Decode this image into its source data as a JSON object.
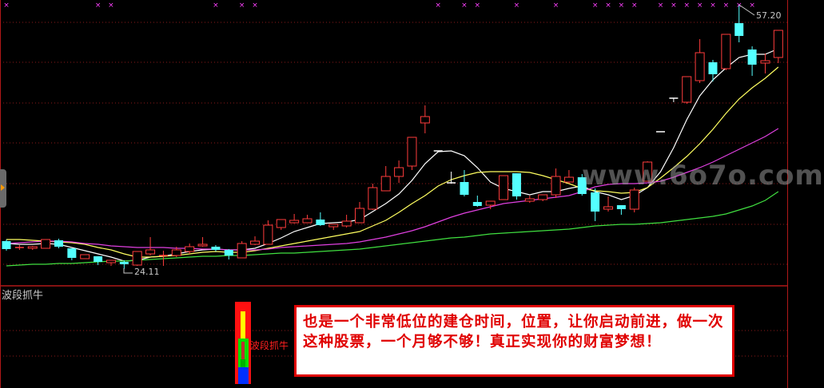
{
  "chart_data": {
    "type": "candlestick",
    "ylim": [
      22.0,
      57.8
    ],
    "grid": true,
    "candles": [
      [
        27.6,
        27.8,
        26.4,
        26.6
      ],
      [
        26.8,
        27.1,
        26.5,
        26.8
      ],
      [
        26.7,
        27.0,
        26.5,
        26.9
      ],
      [
        26.7,
        27.8,
        26.7,
        27.8
      ],
      [
        27.7,
        27.9,
        26.7,
        26.9
      ],
      [
        26.7,
        26.7,
        25.2,
        25.5
      ],
      [
        25.4,
        25.9,
        25.4,
        25.9
      ],
      [
        25.7,
        25.7,
        24.6,
        25.0
      ],
      [
        24.9,
        25.2,
        24.5,
        25.2
      ],
      [
        25.0,
        25.2,
        24.11,
        24.7
      ],
      [
        24.6,
        26.3,
        24.5,
        26.3
      ],
      [
        26.0,
        28.1,
        25.8,
        26.5
      ],
      [
        25.8,
        26.4,
        24.5,
        25.8
      ],
      [
        25.8,
        26.9,
        25.6,
        26.5
      ],
      [
        26.3,
        27.3,
        26.0,
        26.9
      ],
      [
        27.0,
        28.1,
        26.9,
        27.2
      ],
      [
        26.9,
        27.1,
        26.3,
        26.5
      ],
      [
        26.5,
        26.6,
        25.3,
        25.8
      ],
      [
        25.5,
        27.6,
        25.5,
        27.3
      ],
      [
        27.2,
        28.2,
        27.1,
        27.6
      ],
      [
        27.2,
        30.2,
        27.2,
        29.6
      ],
      [
        29.3,
        30.3,
        29.0,
        30.3
      ],
      [
        29.9,
        31.0,
        29.8,
        30.2
      ],
      [
        29.9,
        30.9,
        29.9,
        30.4
      ],
      [
        30.3,
        31.2,
        29.5,
        29.6
      ],
      [
        29.4,
        29.7,
        29.0,
        29.7
      ],
      [
        29.5,
        30.9,
        29.3,
        30.1
      ],
      [
        29.9,
        32.5,
        29.9,
        31.7
      ],
      [
        31.6,
        34.8,
        31.5,
        34.3
      ],
      [
        33.9,
        37.0,
        33.9,
        35.7
      ],
      [
        35.7,
        37.7,
        34.9,
        36.8
      ],
      [
        37.0,
        40.6,
        36.5,
        40.6
      ],
      [
        42.4,
        44.6,
        41.1,
        43.2
      ],
      [
        38.9,
        38.9,
        38.9,
        38.9
      ],
      [
        34.9,
        36.3,
        34.8,
        34.9
      ],
      [
        35.0,
        36.5,
        33.2,
        33.4
      ],
      [
        32.5,
        33.3,
        31.9,
        32.0
      ],
      [
        32.1,
        32.6,
        31.6,
        32.6
      ],
      [
        32.8,
        35.8,
        32.8,
        35.8
      ],
      [
        36.1,
        36.1,
        32.8,
        33.2
      ],
      [
        32.6,
        33.3,
        32.4,
        32.9
      ],
      [
        32.8,
        33.4,
        32.6,
        33.4
      ],
      [
        33.4,
        36.7,
        33.0,
        35.7
      ],
      [
        35.0,
        36.5,
        34.8,
        35.6
      ],
      [
        35.6,
        36.0,
        33.3,
        33.5
      ],
      [
        33.7,
        34.2,
        30.1,
        31.3
      ],
      [
        31.6,
        33.2,
        31.3,
        31.9
      ],
      [
        32.1,
        32.1,
        30.9,
        31.6
      ],
      [
        31.6,
        34.3,
        31.2,
        34.0
      ],
      [
        35.1,
        37.6,
        35.1,
        37.5
      ],
      [
        41.3,
        41.3,
        41.3,
        41.3
      ],
      [
        45.5,
        45.5,
        45.0,
        45.5
      ],
      [
        45.0,
        48.2,
        44.8,
        48.2
      ],
      [
        47.7,
        52.9,
        47.4,
        51.2
      ],
      [
        50.0,
        50.3,
        47.6,
        48.5
      ],
      [
        49.2,
        53.5,
        49.0,
        53.5
      ],
      [
        54.9,
        57.2,
        52.5,
        53.3
      ],
      [
        51.6,
        52.0,
        48.3,
        49.7
      ],
      [
        49.9,
        51.1,
        48.6,
        50.2
      ],
      [
        50.6,
        54.0,
        49.9,
        54.0
      ]
    ],
    "white_doji": [
      33,
      34,
      50,
      51
    ],
    "signal_marks": [
      0,
      7,
      8,
      16,
      18,
      19,
      33,
      35,
      36,
      39,
      42,
      45,
      46,
      47,
      48,
      50,
      51,
      52,
      53,
      54,
      55,
      56,
      57
    ],
    "ma_lines": [
      {
        "color": "#ffffff",
        "values": [
          27.3,
          27.2,
          27.2,
          27.3,
          27.2,
          26.8,
          26.4,
          26.0,
          25.6,
          25.1,
          25.2,
          25.6,
          25.7,
          26.0,
          26.3,
          26.5,
          26.6,
          26.5,
          26.5,
          26.7,
          27.3,
          28.0,
          28.8,
          29.3,
          29.8,
          29.9,
          30.0,
          30.3,
          31.3,
          32.3,
          33.5,
          35.2,
          37.3,
          38.8,
          38.9,
          38.3,
          36.8,
          35.0,
          34.2,
          33.8,
          33.4,
          33.8,
          33.8,
          34.2,
          34.5,
          33.8,
          33.4,
          32.8,
          33.3,
          34.3,
          36.3,
          39.3,
          42.8,
          45.8,
          47.8,
          49.3,
          50.6,
          51.0,
          51.0,
          51.7
        ]
      },
      {
        "color": "#ffff60",
        "values": [
          27.8,
          27.8,
          27.7,
          27.6,
          27.5,
          27.4,
          27.2,
          26.8,
          26.5,
          26.0,
          25.6,
          25.6,
          25.7,
          25.8,
          26.0,
          26.2,
          26.3,
          26.2,
          26.2,
          26.4,
          26.7,
          27.0,
          27.3,
          27.6,
          27.9,
          28.2,
          28.5,
          28.8,
          29.5,
          30.2,
          31.2,
          32.3,
          33.3,
          34.5,
          35.3,
          35.8,
          36.2,
          36.3,
          36.3,
          36.3,
          36.2,
          35.8,
          35.3,
          34.8,
          34.2,
          33.9,
          33.8,
          33.6,
          33.7,
          34.3,
          35.5,
          36.8,
          38.2,
          39.8,
          41.6,
          43.6,
          45.4,
          46.8,
          48.0,
          49.4
        ]
      },
      {
        "color": "#e040e0",
        "values": [
          27.3,
          27.4,
          27.5,
          27.6,
          27.6,
          27.5,
          27.3,
          27.2,
          27.0,
          26.9,
          26.8,
          26.8,
          26.8,
          26.7,
          26.7,
          26.6,
          26.6,
          26.5,
          26.5,
          26.5,
          26.6,
          26.8,
          26.9,
          27.0,
          27.1,
          27.2,
          27.3,
          27.5,
          27.8,
          28.1,
          28.5,
          28.9,
          29.4,
          30.0,
          30.6,
          31.1,
          31.5,
          31.9,
          32.3,
          32.5,
          32.7,
          32.9,
          33.1,
          33.3,
          33.8,
          34.4,
          34.7,
          34.8,
          34.8,
          34.9,
          35.1,
          35.6,
          36.2,
          36.8,
          37.5,
          38.3,
          39.1,
          39.9,
          40.7,
          41.7
        ]
      },
      {
        "color": "#40e040",
        "values": [
          24.5,
          24.6,
          24.7,
          24.7,
          24.8,
          24.8,
          24.9,
          25.0,
          25.1,
          25.1,
          25.2,
          25.3,
          25.4,
          25.5,
          25.6,
          25.7,
          25.7,
          25.8,
          25.8,
          25.9,
          26.0,
          26.1,
          26.1,
          26.2,
          26.3,
          26.4,
          26.5,
          26.6,
          26.8,
          27.0,
          27.2,
          27.4,
          27.6,
          27.8,
          28.0,
          28.1,
          28.3,
          28.5,
          28.6,
          28.7,
          28.8,
          28.9,
          29.0,
          29.1,
          29.3,
          29.5,
          29.6,
          29.7,
          29.7,
          29.8,
          29.9,
          30.1,
          30.3,
          30.5,
          30.7,
          31.0,
          31.5,
          32.0,
          32.7,
          33.8
        ]
      }
    ],
    "high_label": "57.20",
    "low_label": "24.11",
    "colors": {
      "up": "#ff3c3c",
      "down": "#54ffff",
      "doji": "#ffffff",
      "signal": "#ff40ff",
      "grid": "#8b1a1a"
    }
  },
  "indicator": {
    "title": "波段抓牛",
    "signal_label": "波段抓牛"
  },
  "message": "也是一个非常低位的建仓时间，位置，让你启动前进，做一次这种股票，一个月够不够！真正实现你的财富梦想！",
  "watermark": "www.6o7o.com"
}
